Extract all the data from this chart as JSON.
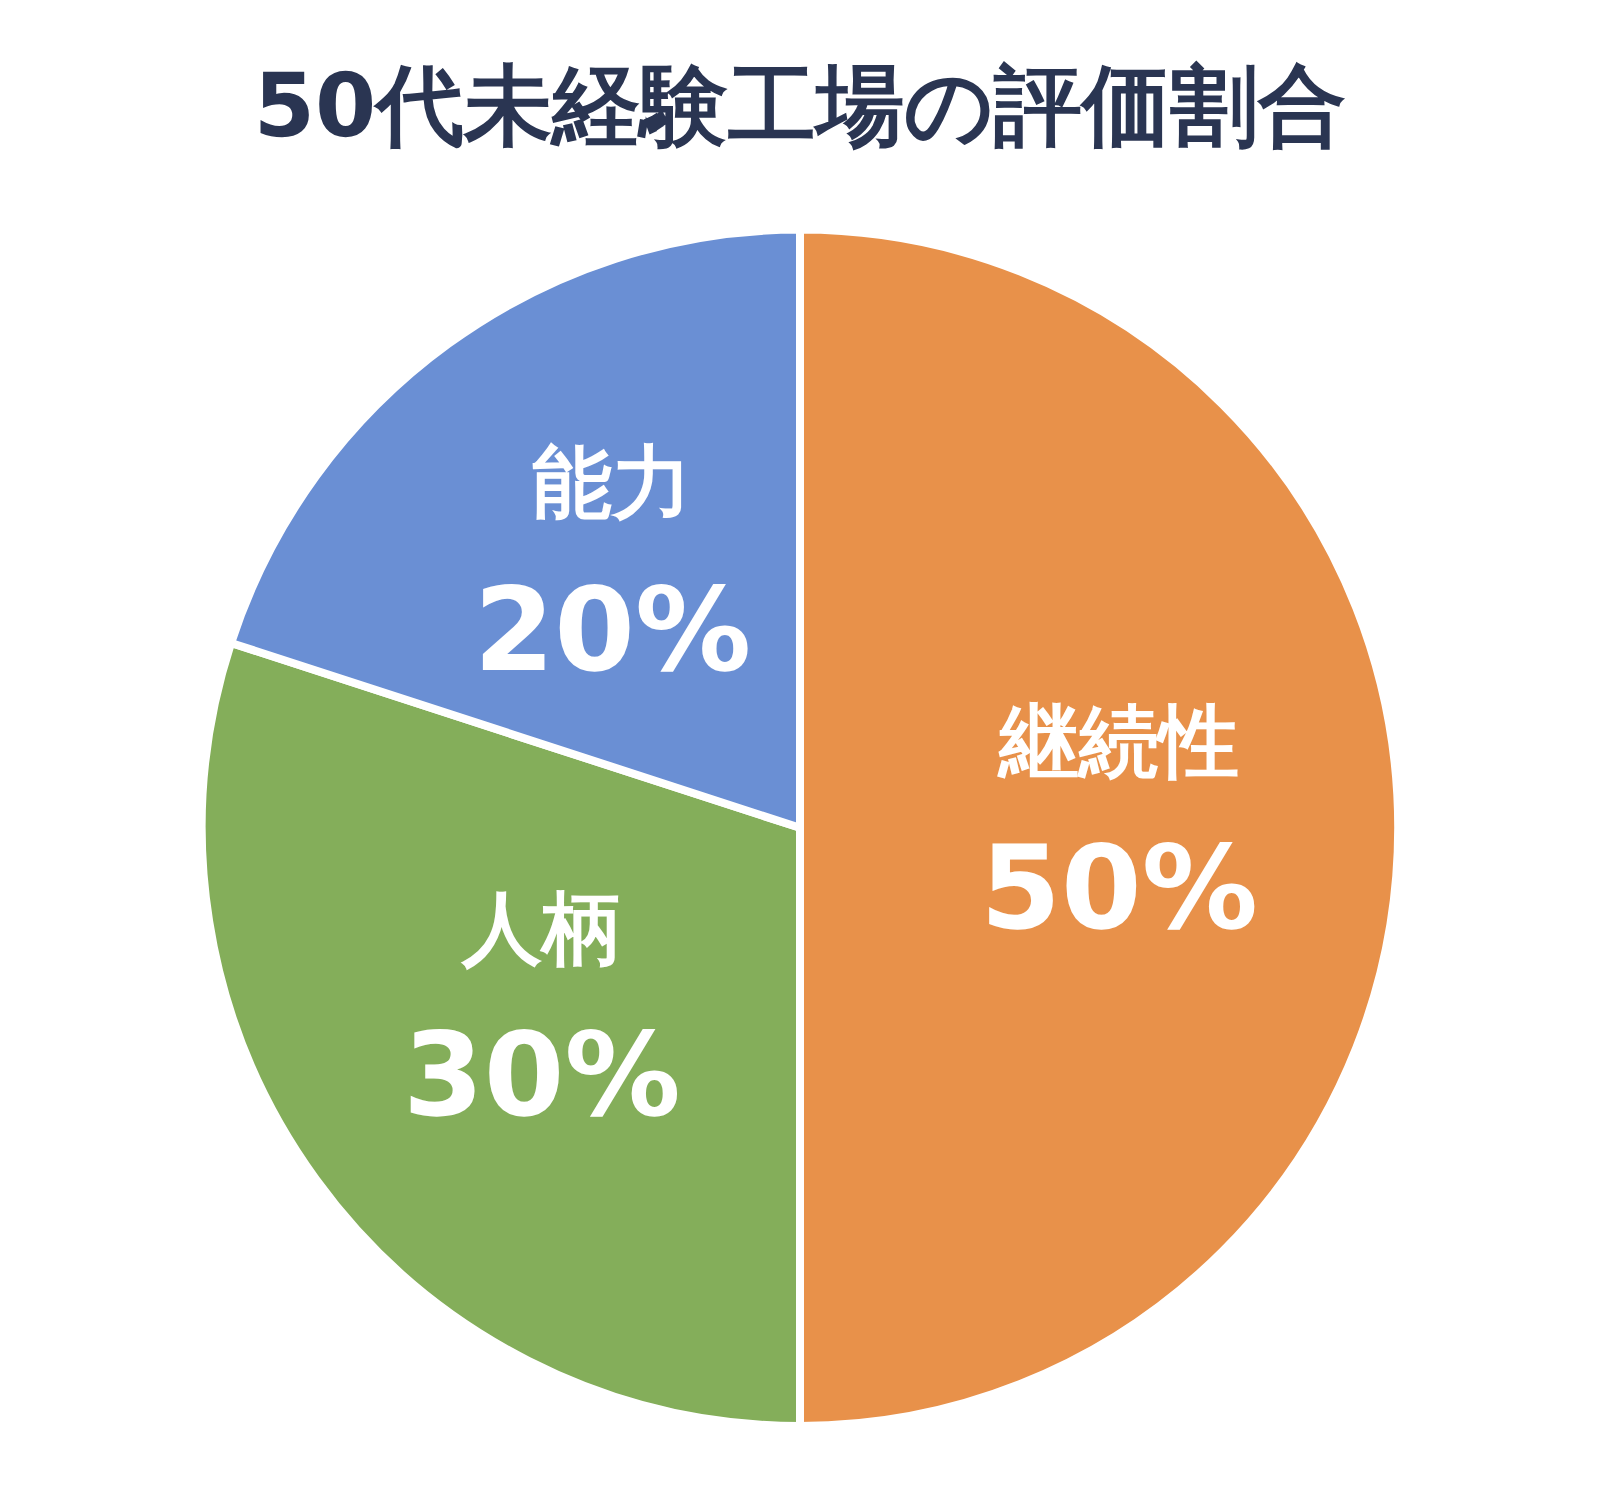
{
  "chart_data": {
    "type": "pie",
    "title": "50代未経験工場の評価割合",
    "categories": [
      "継続性",
      "人柄",
      "能力"
    ],
    "values": [
      50,
      30,
      20
    ],
    "colors": [
      "#e8914a",
      "#84ae5a",
      "#6a8fd4"
    ],
    "value_labels": [
      "50%",
      "30%",
      "20%"
    ],
    "legend": false
  }
}
